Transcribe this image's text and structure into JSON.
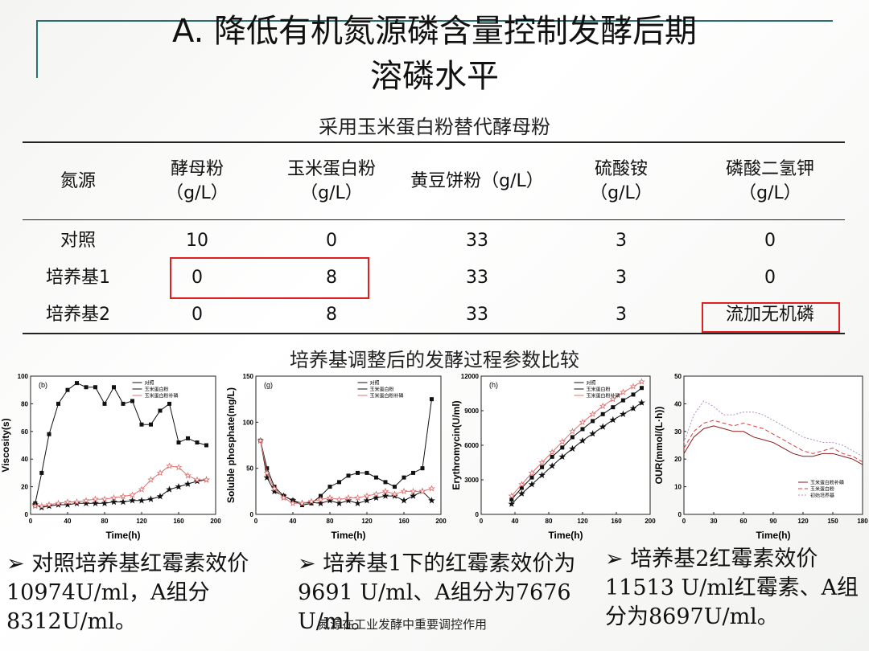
{
  "title": {
    "line1": "A.  降低有机氮源磷含量控制发酵后期",
    "line2": "溶磷水平"
  },
  "table": {
    "caption": "采用玉米蛋白粉替代酵母粉",
    "header": [
      "氮源",
      "酵母粉（g/L）",
      "玉米蛋白粉（g/L）",
      "黄豆饼粉（g/L）",
      "硫酸铵（g/L）",
      "磷酸二氢钾（g/L）"
    ],
    "rows": [
      [
        "对照",
        "10",
        "0",
        "33",
        "3",
        "0"
      ],
      [
        "培养基1",
        "0",
        "8",
        "33",
        "3",
        "0"
      ],
      [
        "培养基2",
        "0",
        "8",
        "33",
        "3",
        "流加无机磷"
      ]
    ]
  },
  "section_caption": "培养基调整后的发酵过程参数比较",
  "charts": [
    {
      "panel": "(b)",
      "ylabel": "Viscosity(s)",
      "xlabel": "Time(h)",
      "xlim": [
        0,
        200
      ],
      "xticks": [
        0,
        40,
        80,
        120,
        160,
        200
      ],
      "ylim": [
        0,
        100
      ],
      "yticks": [
        0,
        20,
        40,
        60,
        80,
        100
      ],
      "x": [
        5,
        12,
        20,
        30,
        40,
        50,
        60,
        70,
        80,
        90,
        100,
        110,
        120,
        130,
        140,
        150,
        160,
        170,
        180,
        190
      ],
      "series": [
        {
          "name": "对照",
          "color": "#111111",
          "marker": "square",
          "dash": "solid",
          "values": [
            8,
            30,
            58,
            80,
            90,
            95,
            92,
            92,
            80,
            92,
            80,
            82,
            65,
            65,
            75,
            80,
            52,
            55,
            52,
            50
          ]
        },
        {
          "name": "玉米蛋白粉",
          "color": "#111111",
          "marker": "star",
          "dash": "solid",
          "values": [
            7,
            5,
            6,
            7,
            7,
            8,
            8,
            8,
            8,
            9,
            9,
            10,
            10,
            11,
            13,
            18,
            20,
            22,
            24,
            25
          ]
        },
        {
          "name": "玉米蛋白粉补磷",
          "color": "#e07070",
          "marker": "open-star",
          "dash": "solid",
          "values": [
            6,
            6,
            7,
            8,
            9,
            9,
            10,
            11,
            11,
            12,
            13,
            14,
            18,
            25,
            30,
            35,
            34,
            28,
            25,
            25
          ]
        }
      ]
    },
    {
      "panel": "(g)",
      "ylabel": "Soluble phosphate(mg/L)",
      "xlabel": "Time(h)",
      "xlim": [
        0,
        200
      ],
      "xticks": [
        0,
        40,
        80,
        120,
        160,
        200
      ],
      "ylim": [
        0,
        150
      ],
      "yticks": [
        0,
        50,
        100,
        150
      ],
      "x": [
        5,
        12,
        20,
        30,
        40,
        50,
        60,
        70,
        80,
        90,
        100,
        110,
        120,
        130,
        140,
        150,
        160,
        170,
        180,
        190
      ],
      "series": [
        {
          "name": "对照",
          "color": "#111111",
          "marker": "square",
          "dash": "solid",
          "values": [
            80,
            50,
            30,
            20,
            15,
            10,
            12,
            20,
            30,
            35,
            42,
            45,
            45,
            40,
            35,
            30,
            40,
            45,
            50,
            125
          ]
        },
        {
          "name": "玉米蛋白粉",
          "color": "#111111",
          "marker": "star",
          "dash": "solid",
          "values": [
            80,
            40,
            25,
            20,
            15,
            12,
            13,
            12,
            15,
            12,
            15,
            12,
            15,
            18,
            20,
            20,
            15,
            20,
            25,
            15
          ]
        },
        {
          "name": "玉米蛋白粉补磷",
          "color": "#e07070",
          "marker": "open-star",
          "dash": "solid",
          "values": [
            80,
            45,
            28,
            18,
            12,
            12,
            14,
            16,
            18,
            16,
            18,
            18,
            20,
            22,
            25,
            22,
            25,
            25,
            25,
            28
          ]
        }
      ]
    },
    {
      "panel": "(h)",
      "ylabel": "Erythromycin(U/ml)",
      "xlabel": "Time(h)",
      "xlim": [
        0,
        200
      ],
      "xticks": [
        0,
        40,
        80,
        120,
        160,
        200
      ],
      "ylim": [
        0,
        12000
      ],
      "yticks": [
        0,
        3000,
        6000,
        9000,
        12000
      ],
      "x": [
        36,
        48,
        60,
        72,
        84,
        96,
        108,
        120,
        132,
        144,
        156,
        168,
        180,
        190
      ],
      "series": [
        {
          "name": "对照",
          "color": "#111111",
          "marker": "square",
          "dash": "solid",
          "values": [
            1300,
            2300,
            3200,
            4100,
            5000,
            5800,
            6700,
            7400,
            8100,
            8700,
            9300,
            9900,
            10400,
            10974
          ]
        },
        {
          "name": "玉米蛋白粉",
          "color": "#111111",
          "marker": "star",
          "dash": "solid",
          "values": [
            900,
            1800,
            2600,
            3400,
            4200,
            5000,
            5700,
            6400,
            7000,
            7600,
            8200,
            8700,
            9200,
            9691
          ]
        },
        {
          "name": "玉米蛋白粉补磷",
          "color": "#e07070",
          "marker": "open-star",
          "dash": "solid",
          "values": [
            1600,
            2600,
            3600,
            4500,
            5400,
            6300,
            7200,
            8000,
            8700,
            9400,
            10000,
            10600,
            11100,
            11513
          ]
        }
      ]
    },
    {
      "ylabel": "OUR(mmol/(L·h))",
      "xlabel": "Time(h)",
      "xlim": [
        0,
        180
      ],
      "xticks": [
        0,
        30,
        60,
        90,
        120,
        150,
        180
      ],
      "ylim": [
        0,
        50
      ],
      "yticks": [
        0,
        10,
        20,
        30,
        40,
        50
      ],
      "x": [
        0,
        10,
        20,
        30,
        40,
        50,
        60,
        70,
        80,
        90,
        100,
        110,
        120,
        130,
        140,
        150,
        160,
        170,
        180
      ],
      "series": [
        {
          "name": "玉米蛋白粉补磷",
          "color": "#8b1a1a",
          "marker": "none",
          "dash": "solid",
          "values": [
            22,
            28,
            31,
            32,
            31,
            30,
            30,
            28,
            27,
            26,
            24,
            22,
            21,
            21,
            22,
            22,
            21,
            20,
            18
          ]
        },
        {
          "name": "玉米蛋白粉",
          "color": "#d04040",
          "marker": "none",
          "dash": "dashed",
          "values": [
            24,
            30,
            33,
            34,
            33,
            32,
            33,
            32,
            31,
            29,
            27,
            25,
            23,
            22,
            23,
            24,
            22,
            21,
            19
          ]
        },
        {
          "name": "初始培养基",
          "color": "#b090c0",
          "marker": "none",
          "dash": "dotted",
          "values": [
            26,
            36,
            41,
            39,
            36,
            36,
            37,
            37,
            36,
            34,
            32,
            30,
            28,
            27,
            26,
            26,
            25,
            23,
            21
          ]
        }
      ]
    }
  ],
  "bullets": [
    "对照培养基红霉素效价10974U/ml，A组分8312U/ml。",
    "培养基1下的红霉素效价为9691 U/ml、A组分为7676 U/ml。",
    "培养基2红霉素效价11513 U/ml红霉素、A组分为8697U/ml。"
  ],
  "footer": "氮源在工业发酵中重要调控作用"
}
